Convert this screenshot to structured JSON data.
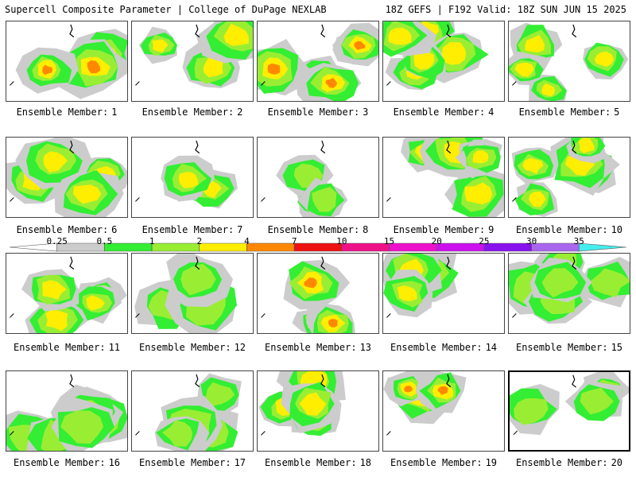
{
  "header": {
    "title": "Supercell Composite Parameter | College of DuPage NEXLAB",
    "run_info": "18Z GEFS | F192 Valid: 18Z SUN JUN 15 2025"
  },
  "member_label_prefix": "Ensemble Member:",
  "members": [
    {
      "number": "1",
      "intensity": "strong"
    },
    {
      "number": "2",
      "intensity": "moderate"
    },
    {
      "number": "3",
      "intensity": "strong"
    },
    {
      "number": "4",
      "intensity": "moderate"
    },
    {
      "number": "5",
      "intensity": "moderate"
    },
    {
      "number": "6",
      "intensity": "moderate"
    },
    {
      "number": "7",
      "intensity": "moderate"
    },
    {
      "number": "8",
      "intensity": "weak"
    },
    {
      "number": "9",
      "intensity": "moderate"
    },
    {
      "number": "10",
      "intensity": "moderate"
    },
    {
      "number": "11",
      "intensity": "moderate"
    },
    {
      "number": "12",
      "intensity": "weak"
    },
    {
      "number": "13",
      "intensity": "strong"
    },
    {
      "number": "14",
      "intensity": "moderate"
    },
    {
      "number": "15",
      "intensity": "weak"
    },
    {
      "number": "16",
      "intensity": "weak"
    },
    {
      "number": "17",
      "intensity": "weak"
    },
    {
      "number": "18",
      "intensity": "moderate"
    },
    {
      "number": "19",
      "intensity": "strong"
    },
    {
      "number": "20",
      "intensity": "weak"
    }
  ],
  "selected_member": "20",
  "colorbar": {
    "ticks": [
      "0.25",
      "0.5",
      "1",
      "2",
      "4",
      "7",
      "10",
      "15",
      "20",
      "25",
      "30",
      "35"
    ],
    "colors": [
      "#ffffff",
      "#cccccc",
      "#33ee33",
      "#99ee33",
      "#ffee00",
      "#ff8800",
      "#ee1111",
      "#ee1188",
      "#ee11cc",
      "#cc11ee",
      "#8811ee",
      "#aa66ee",
      "#44eeee"
    ]
  }
}
